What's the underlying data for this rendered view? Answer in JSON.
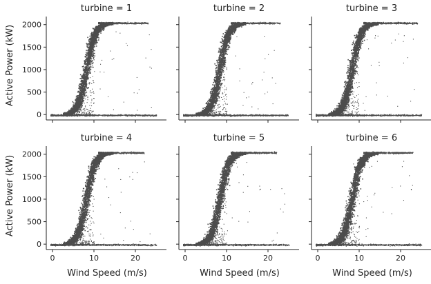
{
  "chart_data": {
    "type": "scatter",
    "layout": "facet-grid",
    "rows": 2,
    "cols": 3,
    "facet_titles": [
      "turbine = 1",
      "turbine = 2",
      "turbine = 3",
      "turbine = 4",
      "turbine = 5",
      "turbine = 6"
    ],
    "xlabel": "Wind Speed (m/s)",
    "ylabel": "Active Power (kW)",
    "xlim": [
      -1.5,
      27.5
    ],
    "ylim": [
      -120,
      2180
    ],
    "xticks": [
      0,
      10,
      20
    ],
    "yticks": [
      0,
      500,
      1000,
      1500,
      2000
    ],
    "point_color": "#4d4d4d",
    "grid": false,
    "power_curve": {
      "description_points": [
        {
          "x": 2.5,
          "y": 0
        },
        {
          "x": 4,
          "y": 60
        },
        {
          "x": 5,
          "y": 190
        },
        {
          "x": 6,
          "y": 400
        },
        {
          "x": 7,
          "y": 700
        },
        {
          "x": 8,
          "y": 1050
        },
        {
          "x": 9,
          "y": 1450
        },
        {
          "x": 10,
          "y": 1800
        },
        {
          "x": 11,
          "y": 1980
        },
        {
          "x": 12,
          "y": 2030
        },
        {
          "x": 14,
          "y": 2040
        },
        {
          "x": 17,
          "y": 2040
        },
        {
          "x": 22,
          "y": 2040
        }
      ],
      "rated_power": 2040,
      "zero_power_band": {
        "x_from": -0.5,
        "x_to": 25,
        "y": -10
      }
    },
    "panels": [
      {
        "turbine": 1,
        "curve_shift": 0.0,
        "max_wind": 23,
        "seed": 11
      },
      {
        "turbine": 2,
        "curve_shift": 0.2,
        "max_wind": 23,
        "seed": 22
      },
      {
        "turbine": 3,
        "curve_shift": 0.1,
        "max_wind": 24,
        "seed": 33
      },
      {
        "turbine": 4,
        "curve_shift": 0.0,
        "max_wind": 22,
        "seed": 44
      },
      {
        "turbine": 5,
        "curve_shift": 0.2,
        "max_wind": 22,
        "seed": 55
      },
      {
        "turbine": 6,
        "curve_shift": 0.1,
        "max_wind": 23,
        "seed": 66
      }
    ]
  }
}
